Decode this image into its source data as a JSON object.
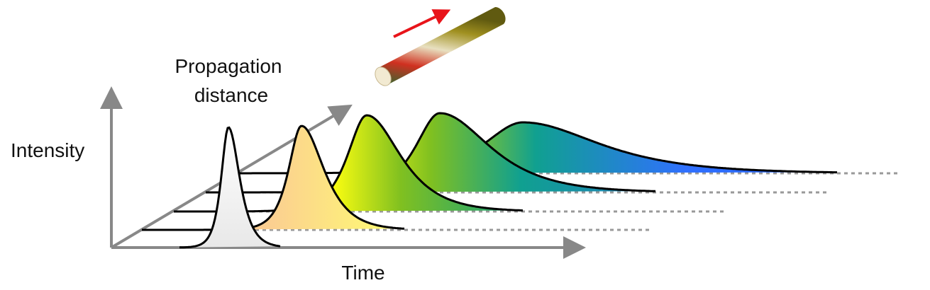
{
  "labels": {
    "propagation": [
      "Propagation",
      "distance"
    ],
    "intensity": "Intensity",
    "time": "Time"
  }
}
